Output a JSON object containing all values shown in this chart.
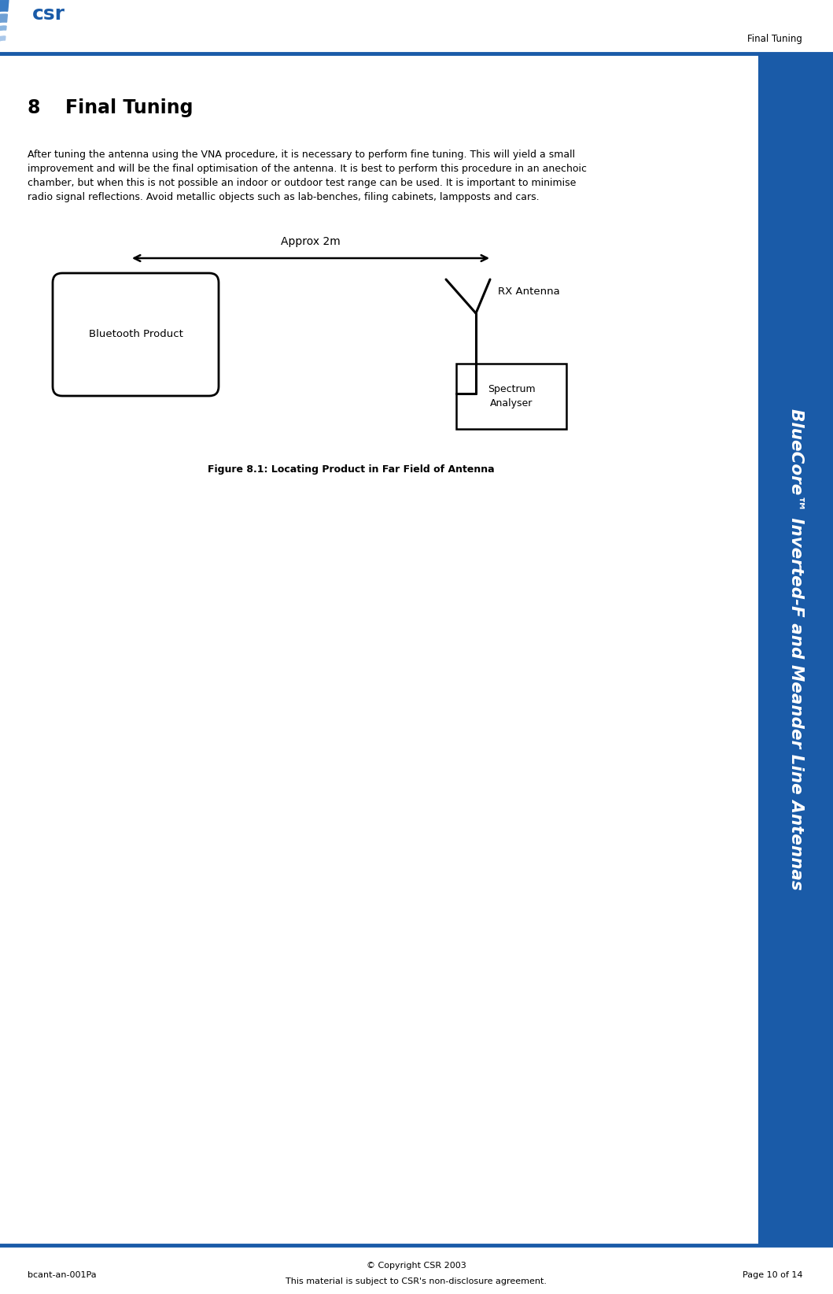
{
  "page_width": 10.59,
  "page_height": 16.44,
  "bg_color": "#ffffff",
  "header_bar_color": "#1a5ba8",
  "header_text": "Final Tuning",
  "header_text_color": "#000000",
  "header_text_size": 8.5,
  "section_number": "8",
  "section_title": "Final Tuning",
  "section_title_size": 17,
  "body_text_line1": "After tuning the antenna using the VNA procedure, it is necessary to perform fine tuning. This will yield a small",
  "body_text_line2": "improvement and will be the final optimisation of the antenna. It is best to perform this procedure in an anechoic",
  "body_text_line3": "chamber, but when this is not possible an indoor or outdoor test range can be used. It is important to minimise",
  "body_text_line4": "radio signal reflections. Avoid metallic objects such as lab-benches, filing cabinets, lampposts and cars.",
  "body_text_size": 9,
  "figure_caption": "Figure 8.1: Locating Product in Far Field of Antenna",
  "figure_caption_size": 9,
  "approx_label": "Approx 2m",
  "bt_product_label": "Bluetooth Product",
  "rx_antenna_label": "RX Antenna",
  "spectrum_label": "Spectrum\nAnalyser",
  "footer_bar_color": "#1a5ba8",
  "footer_left": "bcant-an-001Pa",
  "footer_center_line1": "© Copyright CSR 2003",
  "footer_center_line2": "This material is subject to CSR's non-disclosure agreement.",
  "footer_right": "Page 10 of 14",
  "footer_text_size": 8,
  "sidebar_text": "BlueCore™ Inverted-F and Meander Line Antennas",
  "sidebar_color": "#1a5ba8",
  "sidebar_text_size": 15.5
}
